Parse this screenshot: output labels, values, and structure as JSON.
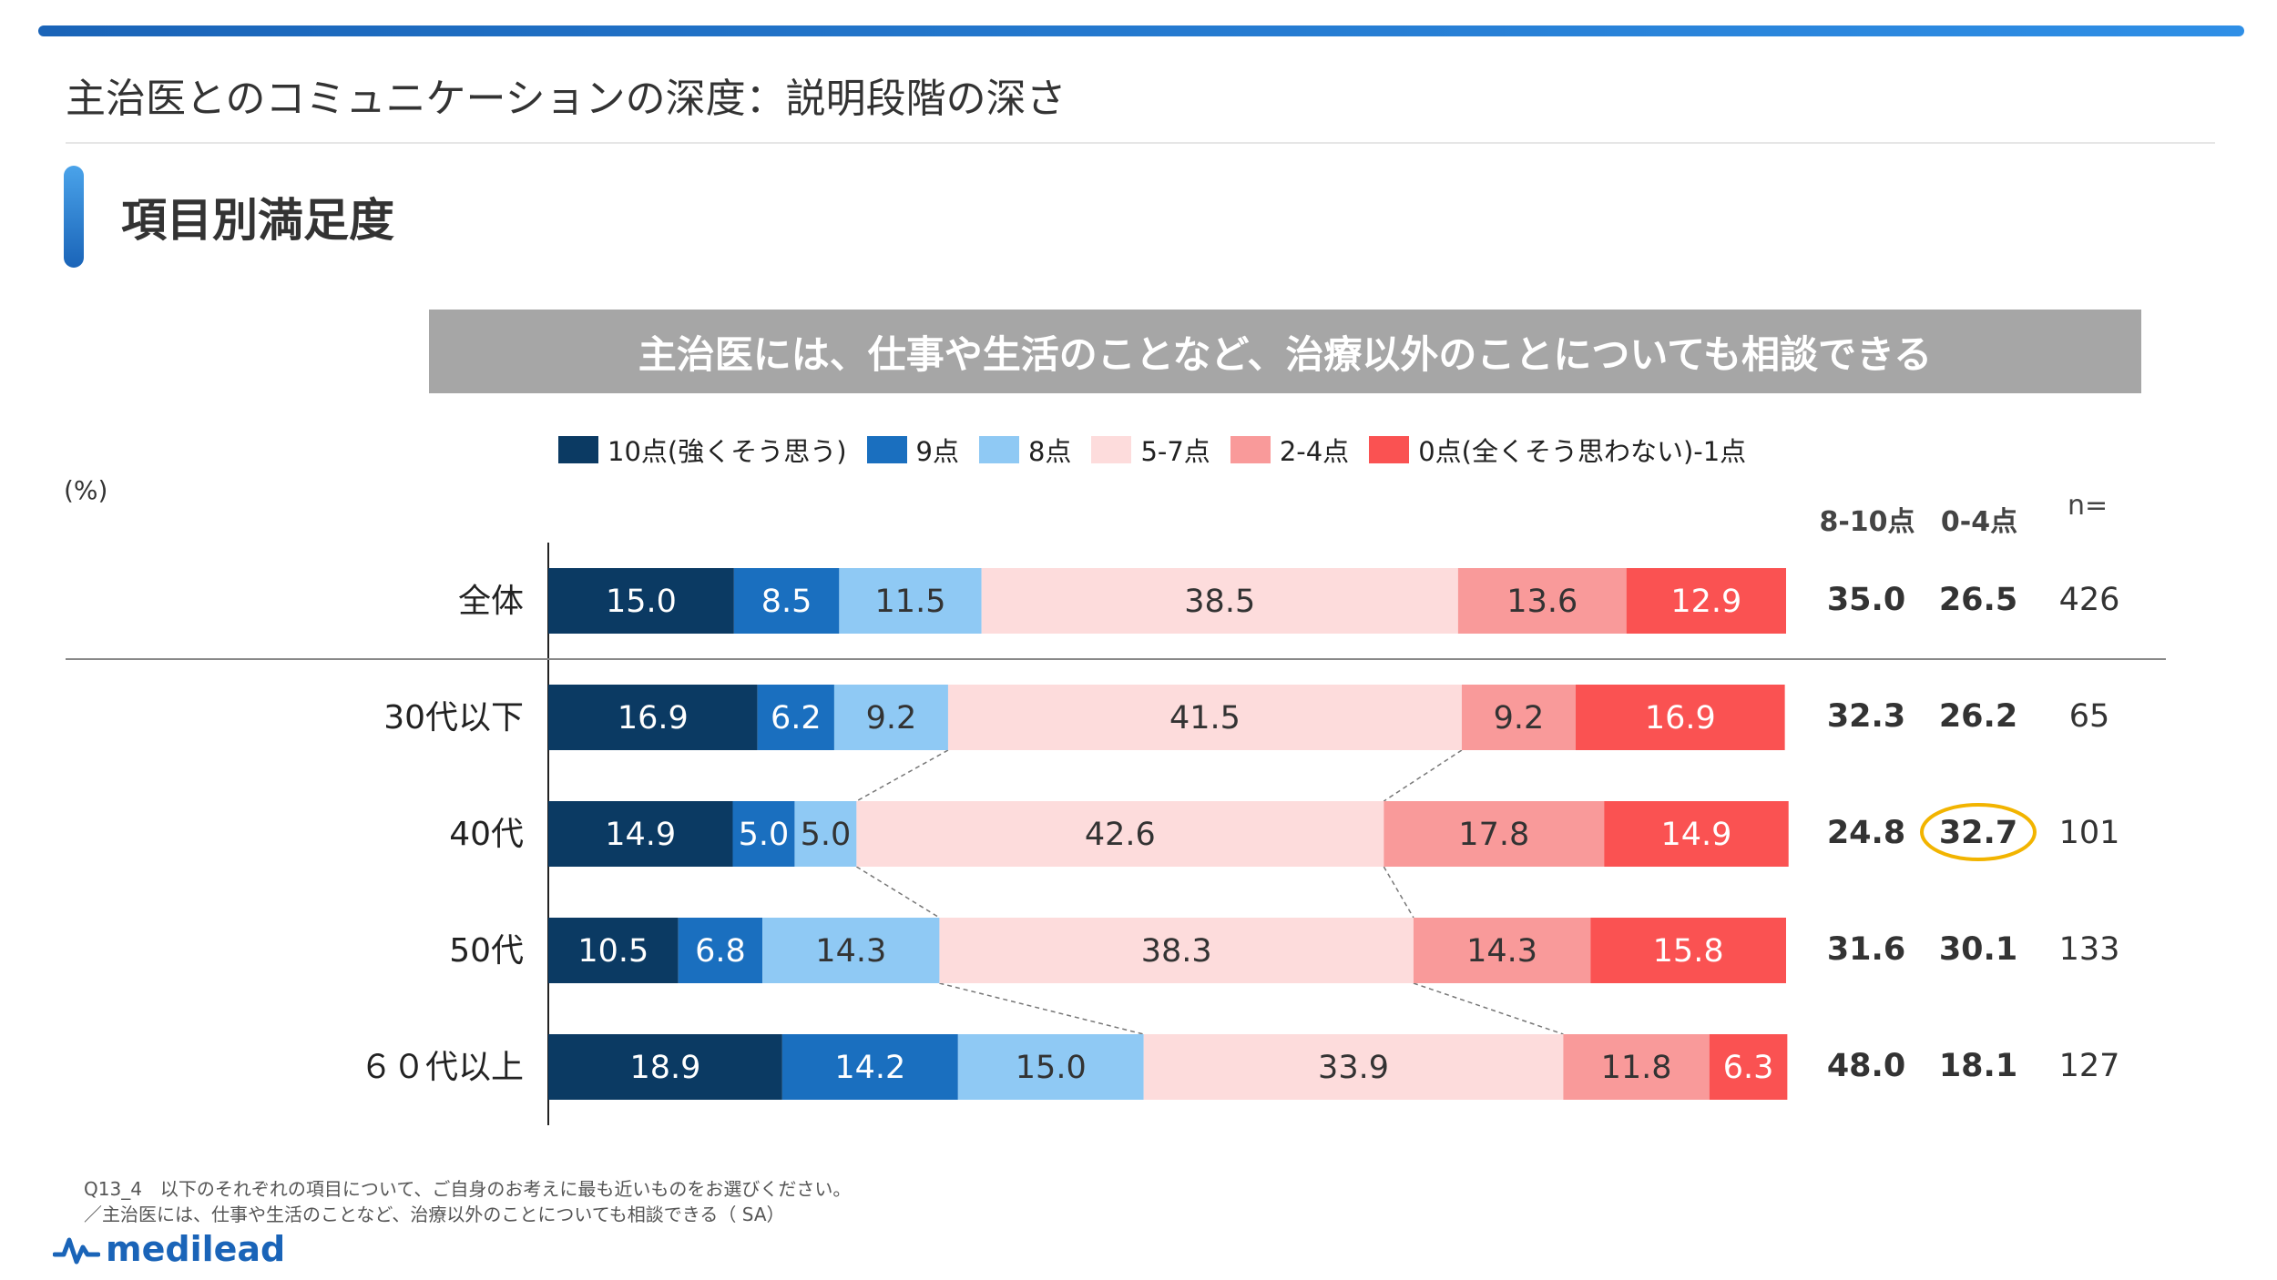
{
  "page": {
    "title": "主治医とのコミュニケーションの深度：説明段階の深さ",
    "section_title": "項目別満足度",
    "question": "主治医には、仕事や生活のことなど、治療以外のことについても相談できる",
    "unit": "(%)",
    "col_headers": {
      "high": "8-10点",
      "low": "0-4点",
      "n": "n="
    },
    "footnote_line1": "Q13_4　以下のそれぞれの項目について、ご自身のお考えに最も近いものをお選びください。",
    "footnote_line2": "／主治医には、仕事や生活のことなど、治療以外のことについても相談できる（ SA）",
    "logo_text": "medilead"
  },
  "colors": {
    "accent": "#1a64b8",
    "banner": "#a6a6a6",
    "highlight_circle": "#f2b400"
  },
  "chart_data": {
    "type": "bar",
    "orientation": "horizontal",
    "stacked": true,
    "xlim": [
      0,
      100
    ],
    "legend_position": "top",
    "categories": [
      "全体",
      "30代以下",
      "40代",
      "50代",
      "６０代以上"
    ],
    "series": [
      {
        "name": "10点(強くそう思う)",
        "color": "#0b3a63",
        "label_color": "#ffffff",
        "values": [
          15.0,
          16.9,
          14.9,
          10.5,
          18.9
        ]
      },
      {
        "name": "9点",
        "color": "#1a6fbf",
        "label_color": "#ffffff",
        "values": [
          8.5,
          6.2,
          5.0,
          6.8,
          14.2
        ]
      },
      {
        "name": "8点",
        "color": "#8fc9f4",
        "label_color": "#333333",
        "values": [
          11.5,
          9.2,
          5.0,
          14.3,
          15.0
        ]
      },
      {
        "name": "5-7点",
        "color": "#fddcdc",
        "label_color": "#333333",
        "values": [
          38.5,
          41.5,
          42.6,
          38.3,
          33.9
        ]
      },
      {
        "name": "2-4点",
        "color": "#f99a9a",
        "label_color": "#333333",
        "values": [
          13.6,
          9.2,
          17.8,
          14.3,
          11.8
        ]
      },
      {
        "name": "0点(全くそう思わない)-1点",
        "color": "#fa5252",
        "label_color": "#ffffff",
        "values": [
          12.9,
          16.9,
          14.9,
          15.8,
          6.3
        ]
      }
    ],
    "summary": {
      "high_8_10": [
        35.0,
        32.3,
        24.8,
        31.6,
        48.0
      ],
      "low_0_4": [
        26.5,
        26.2,
        32.7,
        30.1,
        18.1
      ],
      "n": [
        426,
        65,
        101,
        133,
        127
      ]
    },
    "highlighted": {
      "column": "low_0_4",
      "row": 2
    }
  }
}
